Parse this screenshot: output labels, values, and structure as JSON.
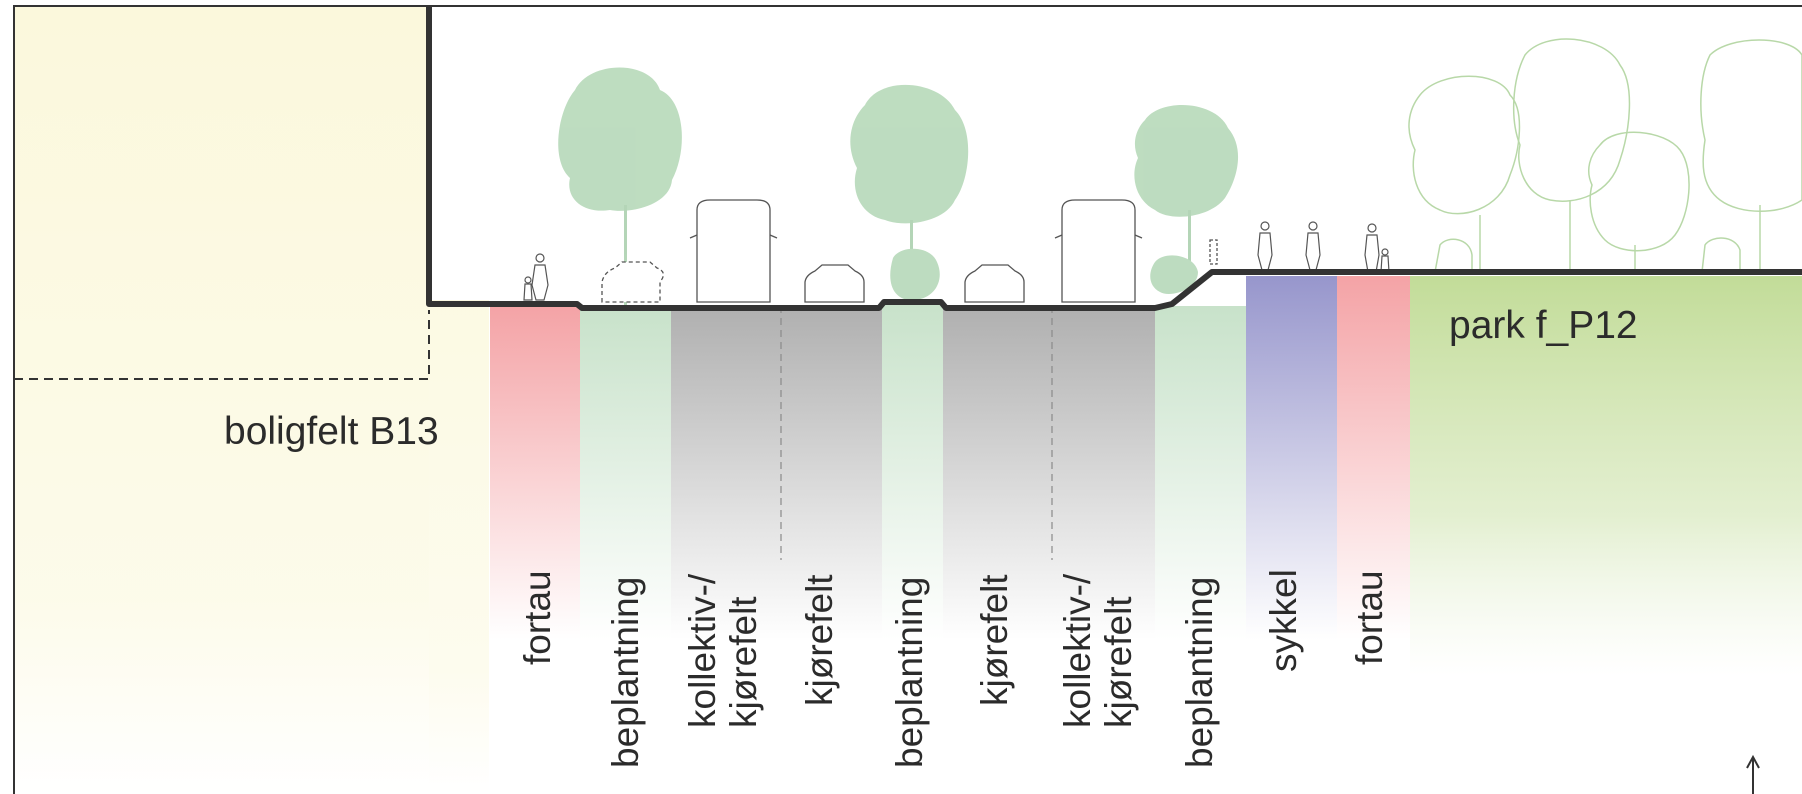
{
  "areas": {
    "left": "boligfelt B13",
    "right": "park f_P12"
  },
  "lanes": [
    {
      "label": "fortau",
      "kind": "sidewalk"
    },
    {
      "label": "beplantning",
      "kind": "planting"
    },
    {
      "label": "kollektiv-/\nkjørefelt",
      "kind": "road"
    },
    {
      "label": "kjørefelt",
      "kind": "road"
    },
    {
      "label": "beplantning",
      "kind": "planting"
    },
    {
      "label": "kjørefelt",
      "kind": "road"
    },
    {
      "label": "kollektiv-/\nkjørefelt",
      "kind": "road"
    },
    {
      "label": "beplantning",
      "kind": "planting"
    },
    {
      "label": "sykkel",
      "kind": "bike"
    },
    {
      "label": "fortau",
      "kind": "sidewalk"
    }
  ],
  "colors": {
    "sidewalk": "#f4a3a6",
    "planting": "#c8e2ca",
    "road": "#b0b0b0",
    "bike": "#9796cc",
    "residential": "#fbf8dc",
    "park": "#c9e0a4",
    "tree": "#a8d1ab",
    "outline": "#333333"
  },
  "icons": [
    "north-arrow-icon"
  ]
}
